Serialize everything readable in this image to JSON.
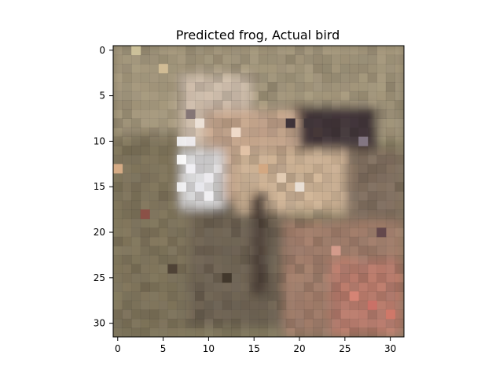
{
  "title": "Predicted frog, Actual bird",
  "image_axes": {
    "type": "image",
    "x_ticks": [
      "0",
      "5",
      "10",
      "15",
      "20",
      "25",
      "30"
    ],
    "y_ticks": [
      "0",
      "5",
      "10",
      "15",
      "20",
      "25",
      "30"
    ],
    "grid": false
  },
  "image_description_colors": {
    "axis_color": "#000000",
    "background": "#ffffff"
  }
}
